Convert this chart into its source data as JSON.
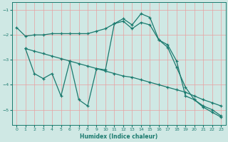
{
  "xlabel": "Humidex (Indice chaleur)",
  "bg_color": "#cfe8e4",
  "line_color": "#1a7a6e",
  "grid_color": "#e8a0a0",
  "xlim": [
    -0.5,
    23.5
  ],
  "ylim": [
    -5.6,
    -0.7
  ],
  "yticks": [
    -5,
    -4,
    -3,
    -2,
    -1
  ],
  "xticks": [
    0,
    1,
    2,
    3,
    4,
    5,
    6,
    7,
    8,
    9,
    10,
    11,
    12,
    13,
    14,
    15,
    16,
    17,
    18,
    19,
    20,
    21,
    22,
    23
  ],
  "line1_x": [
    0,
    1,
    2,
    3,
    4,
    5,
    6,
    7,
    8,
    9,
    10,
    11,
    12,
    13,
    14,
    15,
    16,
    17,
    18,
    19,
    20,
    21,
    22,
    23
  ],
  "line1_y": [
    -1.7,
    -2.05,
    -2.0,
    -2.0,
    -1.95,
    -1.95,
    -1.95,
    -1.95,
    -1.95,
    -1.85,
    -1.75,
    -1.55,
    -1.45,
    -1.75,
    -1.5,
    -1.6,
    -2.2,
    -2.5,
    -3.3,
    -4.1,
    -4.6,
    -4.9,
    -5.1,
    -5.3
  ],
  "line2_x": [
    1,
    2,
    3,
    4,
    5,
    6,
    7,
    8,
    9,
    10,
    11,
    12,
    13,
    14,
    15,
    16,
    17,
    18,
    19,
    20,
    21,
    22,
    23
  ],
  "line2_y": [
    -2.55,
    -2.65,
    -2.75,
    -2.85,
    -2.95,
    -3.05,
    -3.15,
    -3.25,
    -3.35,
    -3.45,
    -3.55,
    -3.65,
    -3.7,
    -3.8,
    -3.9,
    -4.0,
    -4.1,
    -4.2,
    -4.3,
    -4.45,
    -4.6,
    -4.72,
    -4.85
  ],
  "line3_x": [
    1,
    2,
    3,
    4,
    5,
    6,
    7,
    8,
    9,
    10,
    11,
    12,
    13,
    14,
    15,
    16,
    17,
    18,
    19,
    20,
    21,
    22,
    23
  ],
  "line3_y": [
    -2.55,
    -3.55,
    -3.75,
    -3.55,
    -4.45,
    -3.05,
    -4.6,
    -4.85,
    -3.35,
    -3.4,
    -1.55,
    -1.35,
    -1.6,
    -1.15,
    -1.3,
    -2.2,
    -2.4,
    -3.05,
    -4.45,
    -4.6,
    -4.85,
    -5.0,
    -5.25
  ]
}
